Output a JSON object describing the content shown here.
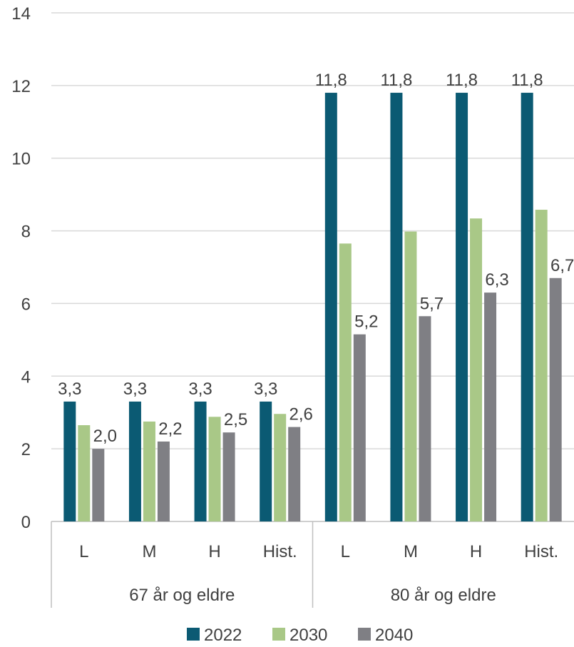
{
  "chart_data": {
    "type": "bar",
    "title": "",
    "xlabel": "",
    "ylabel": "",
    "ylim": [
      0,
      14
    ],
    "yticks": [
      0,
      2,
      4,
      6,
      8,
      10,
      12,
      14
    ],
    "grid": true,
    "legend_position": "bottom",
    "categories": [
      "L",
      "M",
      "H",
      "Hist.",
      "L",
      "M",
      "H",
      "Hist."
    ],
    "groups": [
      {
        "label": "67 år og eldre",
        "count": 4
      },
      {
        "label": "80 år og eldre",
        "count": 4
      }
    ],
    "series": [
      {
        "name": "2022",
        "color": "#0b5a73",
        "values": [
          3.3,
          3.3,
          3.3,
          3.3,
          11.8,
          11.8,
          11.8,
          11.8
        ],
        "labels": [
          "3,3",
          "3,3",
          "3,3",
          "3,3",
          "11,8",
          "11,8",
          "11,8",
          "11,8"
        ]
      },
      {
        "name": "2030",
        "color": "#a9c887",
        "values": [
          2.65,
          2.75,
          2.88,
          2.96,
          7.65,
          7.98,
          8.34,
          8.58
        ],
        "labels": [
          "",
          "",
          "",
          "",
          "",
          "",
          "",
          ""
        ]
      },
      {
        "name": "2040",
        "color": "#7f7f84",
        "values": [
          2.0,
          2.2,
          2.45,
          2.6,
          5.15,
          5.65,
          6.3,
          6.7
        ],
        "labels": [
          "2,0",
          "2,2",
          "2,5",
          "2,6",
          "5,2",
          "5,7",
          "6,3",
          "6,7"
        ]
      }
    ]
  }
}
